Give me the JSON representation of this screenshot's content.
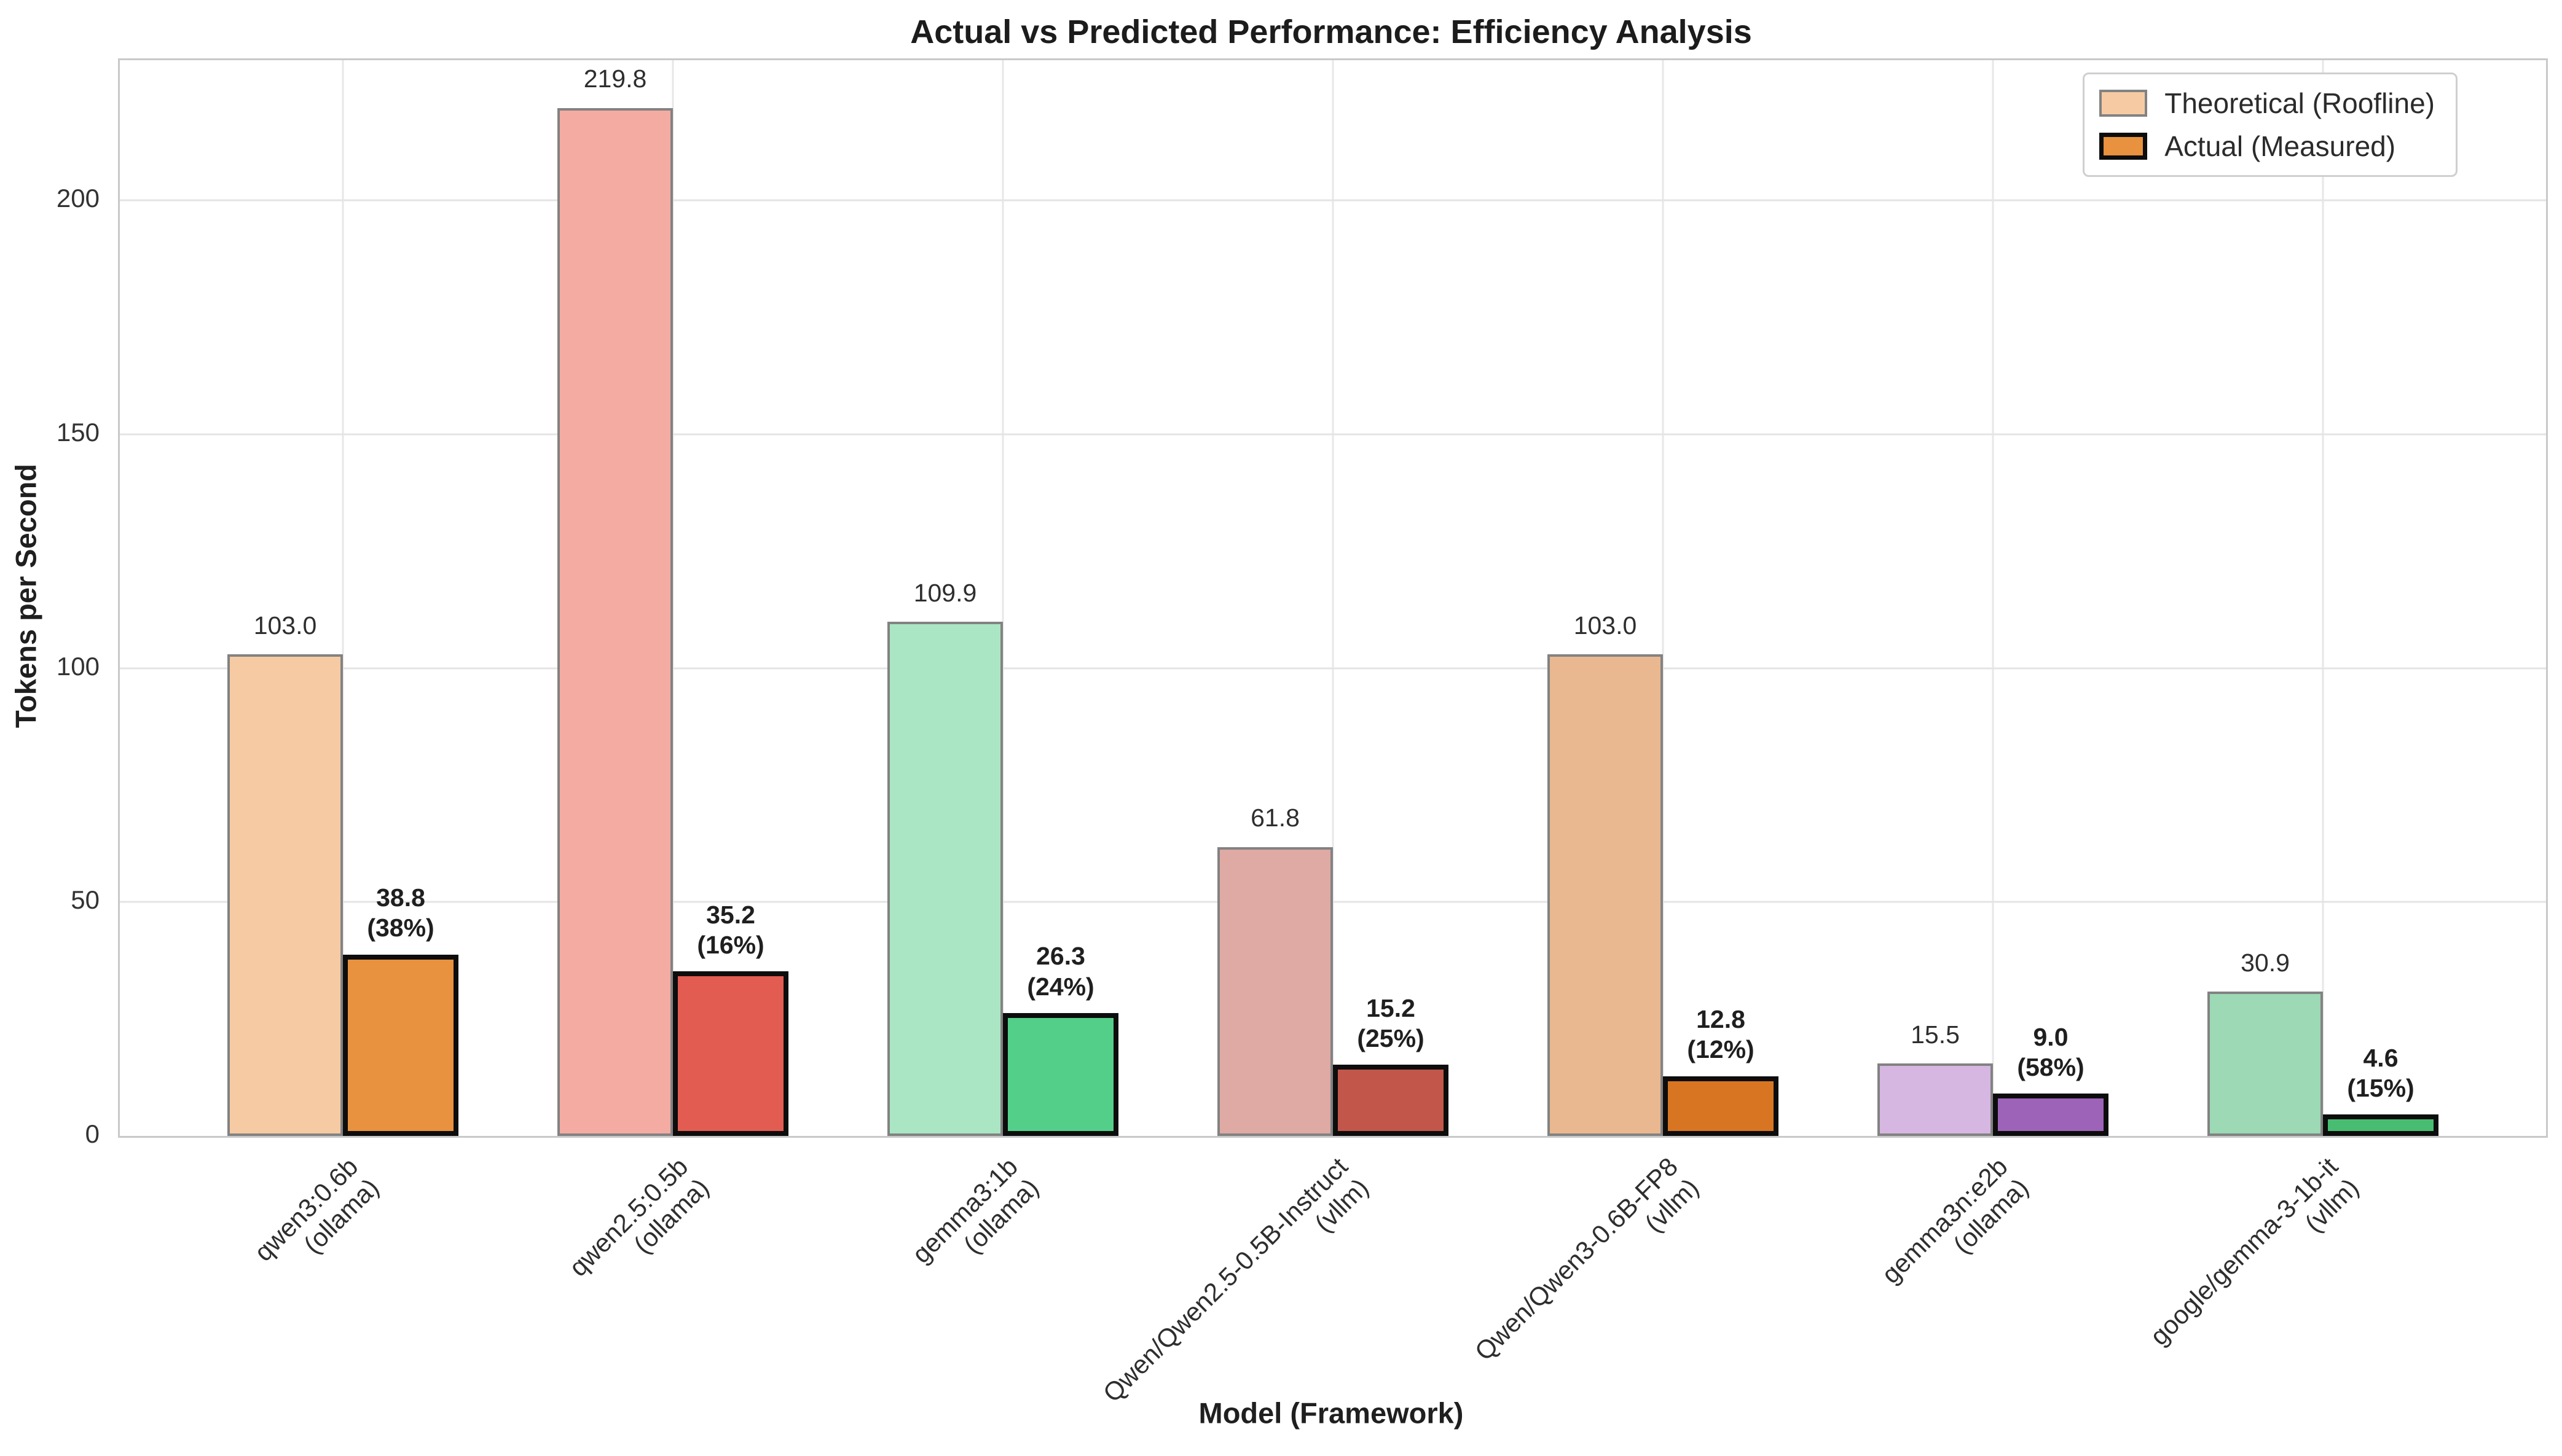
{
  "title": "Actual vs Predicted Performance: Efficiency Analysis",
  "axes": {
    "xlabel": "Model (Framework)",
    "ylabel": "Tokens per Second"
  },
  "legend": {
    "items": [
      {
        "label": "Theoretical (Roofline)",
        "swatch_fill": "#f6cba3",
        "swatch_edge": "#828282",
        "swatch_edge_width": 4
      },
      {
        "label": "Actual (Measured)",
        "swatch_fill": "#e8913e",
        "swatch_edge": "#0d0d0d",
        "swatch_edge_width": 7
      }
    ]
  },
  "chart_data": {
    "type": "bar",
    "title": "Actual vs Predicted Performance: Efficiency Analysis",
    "xlabel": "Model (Framework)",
    "ylabel": "Tokens per Second",
    "ylim": [
      0,
      230
    ],
    "yticks": [
      0,
      50,
      100,
      150,
      200
    ],
    "grid": true,
    "legend_position": "upper right",
    "categories": [
      [
        "qwen3:0.6b",
        "(ollama)"
      ],
      [
        "qwen2.5:0.5b",
        "(ollama)"
      ],
      [
        "gemma3:1b",
        "(ollama)"
      ],
      [
        "Qwen/Qwen2.5-0.5B-Instruct",
        "(vllm)"
      ],
      [
        "Qwen/Qwen3-0.6B-FP8",
        "(vllm)"
      ],
      [
        "gemma3n:e2b",
        "(ollama)"
      ],
      [
        "google/gemma-3-1b-it",
        "(vllm)"
      ]
    ],
    "series": [
      {
        "name": "Theoretical (Roofline)",
        "values": [
          103.0,
          219.8,
          109.9,
          61.8,
          103.0,
          15.5,
          30.9
        ],
        "labels": [
          "103.0",
          "219.8",
          "109.9",
          "61.8",
          "103.0",
          "15.5",
          "30.9"
        ]
      },
      {
        "name": "Actual (Measured)",
        "values": [
          38.8,
          35.2,
          26.3,
          15.2,
          12.8,
          9.0,
          4.6
        ],
        "labels": [
          "38.8",
          "35.2",
          "26.3",
          "15.2",
          "12.8",
          "9.0",
          "4.6"
        ],
        "efficiency_labels": [
          "(38%)",
          "(16%)",
          "(24%)",
          "(25%)",
          "(12%)",
          "(58%)",
          "(15%)"
        ]
      }
    ],
    "group_colors": [
      {
        "theoretical": "#f6cba3",
        "actual": "#e8913e"
      },
      {
        "theoretical": "#f4aba2",
        "actual": "#e35c51"
      },
      {
        "theoretical": "#aae6c3",
        "actual": "#53cf89"
      },
      {
        "theoretical": "#dfa9a4",
        "actual": "#c2564b"
      },
      {
        "theoretical": "#e9b890",
        "actual": "#d87522"
      },
      {
        "theoretical": "#d6b7e1",
        "actual": "#9d63b8"
      },
      {
        "theoretical": "#9cd9b4",
        "actual": "#48bd72"
      }
    ],
    "style_colors": {
      "grid": "#e4e4e4",
      "spine": "#c9c9c9",
      "theoretical_edge": "#828282",
      "actual_edge": "#0d0d0d",
      "text": "#2e2e2e"
    }
  }
}
